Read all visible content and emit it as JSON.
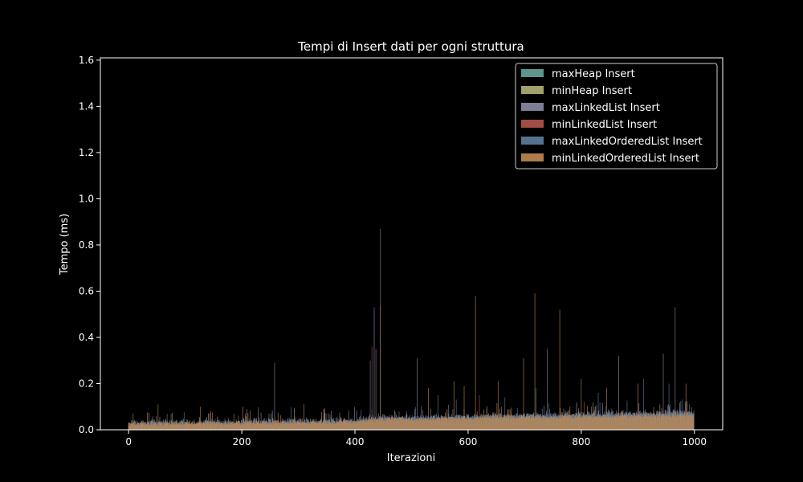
{
  "chart_data": {
    "type": "bar",
    "title": "Tempi di Insert dati per ogni struttura",
    "xlabel": "Iterazioni",
    "ylabel": "Tempo (ms)",
    "xlim": [
      -50,
      1050
    ],
    "ylim": [
      0,
      1.61
    ],
    "x_ticks": [
      0,
      200,
      400,
      600,
      800,
      1000
    ],
    "y_ticks": [
      0.0,
      0.2,
      0.4,
      0.6,
      0.8,
      1.0,
      1.2,
      1.4,
      1.6
    ],
    "x_tick_labels": [
      "0",
      "200",
      "400",
      "600",
      "800",
      "1000"
    ],
    "y_tick_labels": [
      "0.0",
      "0.2",
      "0.4",
      "0.6",
      "0.8",
      "1.0",
      "1.2",
      "1.4",
      "1.6"
    ],
    "grid": false,
    "legend_position": "top-right",
    "background": "#000000",
    "series": [
      {
        "name": "maxHeap Insert",
        "color": "#66a69b",
        "base": [
          [
            0,
            0.012
          ],
          [
            400,
            0.015
          ],
          [
            1000,
            0.018
          ]
        ],
        "noise": 0.01,
        "spikes": [
          [
            52,
            0.04
          ],
          [
            430,
            0.09
          ],
          [
            740,
            0.05
          ]
        ]
      },
      {
        "name": "minHeap Insert",
        "color": "#b3b37a",
        "base": [
          [
            0,
            0.012
          ],
          [
            400,
            0.015
          ],
          [
            1000,
            0.02
          ]
        ],
        "noise": 0.01,
        "spikes": [
          [
            255,
            0.05
          ],
          [
            600,
            0.06
          ],
          [
            880,
            0.05
          ]
        ]
      },
      {
        "name": "maxLinkedList Insert",
        "color": "#8c8ca6",
        "base": [
          [
            0,
            0.018
          ],
          [
            400,
            0.03
          ],
          [
            420,
            0.04
          ],
          [
            1000,
            0.065
          ]
        ],
        "noise": 0.02,
        "spikes": [
          [
            258,
            0.29
          ],
          [
            434,
            0.53
          ],
          [
            437,
            0.35
          ],
          [
            445,
            0.87
          ],
          [
            510,
            0.31
          ],
          [
            740,
            0.35
          ],
          [
            866,
            0.32
          ],
          [
            945,
            0.33
          ],
          [
            966,
            0.53
          ]
        ]
      },
      {
        "name": "minLinkedList Insert",
        "color": "#b3544d",
        "base": [
          [
            0,
            0.01
          ],
          [
            1000,
            0.02
          ]
        ],
        "noise": 0.01,
        "spikes": [
          [
            430,
            0.36
          ],
          [
            620,
            0.15
          ],
          [
            805,
            0.12
          ]
        ]
      },
      {
        "name": "maxLinkedOrderedList Insert",
        "color": "#5e7f9e",
        "base": [
          [
            0,
            0.018
          ],
          [
            400,
            0.028
          ],
          [
            420,
            0.038
          ],
          [
            1000,
            0.06
          ]
        ],
        "noise": 0.02,
        "spikes": [
          [
            427,
            0.3
          ],
          [
            547,
            0.15
          ],
          [
            665,
            0.14
          ],
          [
            720,
            0.18
          ],
          [
            830,
            0.16
          ],
          [
            910,
            0.22
          ],
          [
            955,
            0.2
          ]
        ]
      },
      {
        "name": "minLinkedOrderedList Insert",
        "color": "#c08a52",
        "base": [
          [
            0,
            0.015
          ],
          [
            400,
            0.025
          ],
          [
            420,
            0.035
          ],
          [
            1000,
            0.055
          ]
        ],
        "noise": 0.02,
        "spikes": [
          [
            8,
            0.07
          ],
          [
            52,
            0.11
          ],
          [
            127,
            0.1
          ],
          [
            202,
            0.1
          ],
          [
            310,
            0.11
          ],
          [
            445,
            0.54
          ],
          [
            530,
            0.18
          ],
          [
            575,
            0.21
          ],
          [
            593,
            0.19
          ],
          [
            613,
            0.58
          ],
          [
            653,
            0.21
          ],
          [
            698,
            0.31
          ],
          [
            718,
            0.59
          ],
          [
            762,
            0.52
          ],
          [
            800,
            0.22
          ],
          [
            845,
            0.18
          ],
          [
            900,
            0.2
          ],
          [
            985,
            0.2
          ]
        ]
      }
    ]
  }
}
